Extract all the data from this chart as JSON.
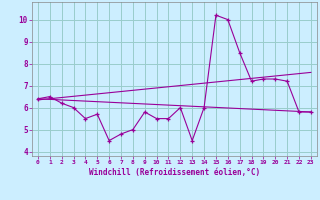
{
  "xlabel": "Windchill (Refroidissement éolien,°C)",
  "xlim": [
    -0.5,
    23.5
  ],
  "ylim": [
    3.8,
    10.8
  ],
  "xticks": [
    0,
    1,
    2,
    3,
    4,
    5,
    6,
    7,
    8,
    9,
    10,
    11,
    12,
    13,
    14,
    15,
    16,
    17,
    18,
    19,
    20,
    21,
    22,
    23
  ],
  "yticks": [
    4,
    5,
    6,
    7,
    8,
    9,
    10
  ],
  "background_color": "#cceeff",
  "grid_color": "#99cccc",
  "line_color": "#990099",
  "line1_x": [
    0,
    1,
    2,
    3,
    4,
    5,
    6,
    7,
    8,
    9,
    10,
    11,
    12,
    13,
    14,
    15,
    16,
    17,
    18,
    19,
    20,
    21,
    22,
    23
  ],
  "line1_y": [
    6.4,
    6.5,
    6.2,
    6.0,
    5.5,
    5.7,
    4.5,
    4.8,
    5.0,
    5.8,
    5.5,
    5.5,
    6.0,
    4.5,
    6.0,
    10.2,
    10.0,
    8.5,
    7.2,
    7.3,
    7.3,
    7.2,
    5.8,
    5.8
  ],
  "line2_x": [
    0,
    23
  ],
  "line2_y": [
    6.4,
    5.8
  ],
  "line3_x": [
    0,
    23
  ],
  "line3_y": [
    6.35,
    7.6
  ]
}
